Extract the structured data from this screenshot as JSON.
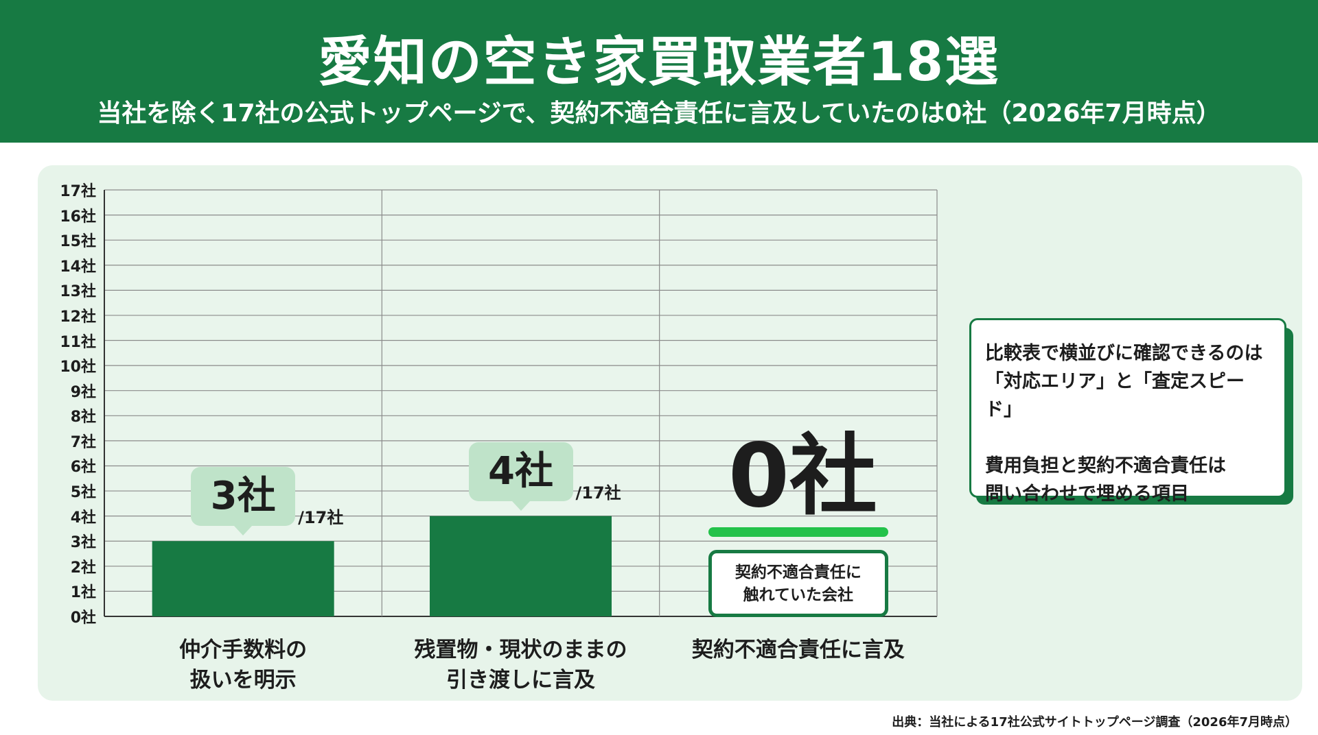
{
  "header": {
    "title": "愛知の空き家買取業者18選",
    "subtitle": "当社を除く17社の公式トップページで、契約不適合責任に言及していたのは0社（2026年7月時点）"
  },
  "chart_data": {
    "type": "bar",
    "categories": [
      "仲介手数料の\n扱いを明示",
      "残置物・現状のままの\n引き渡しに言及",
      "契約不適合責任に言及"
    ],
    "values": [
      3,
      4,
      0
    ],
    "value_labels": [
      "3社",
      "4社",
      "0社"
    ],
    "denominator_label": "/17社",
    "ylim": [
      0,
      17
    ],
    "y_tick_labels": [
      "0社",
      "1社",
      "2社",
      "3社",
      "4社",
      "5社",
      "6社",
      "7社",
      "8社",
      "9社",
      "10社",
      "11社",
      "12社",
      "13社",
      "14社",
      "15社",
      "16社",
      "17社"
    ],
    "grid": true,
    "bar_color": "#177a43",
    "highlight": {
      "category_index": 2,
      "text": "契約不適合責任に\n触れていた会社",
      "underline_color": "#23c24a"
    }
  },
  "note": {
    "lines_1": [
      "比較表で横並びに確認できるのは",
      "「対応エリア」と「査定スピード」"
    ],
    "lines_2": [
      "費用負担と契約不適合責任は",
      "問い合わせで埋める項目"
    ]
  },
  "source": "出典：当社による17社公式サイトトップページ調査（2026年7月時点）",
  "colors": {
    "brand_green": "#177a43",
    "panel_bg": "#e7f4ea",
    "bubble_bg": "#bfe3c9",
    "accent_green": "#23c24a"
  }
}
